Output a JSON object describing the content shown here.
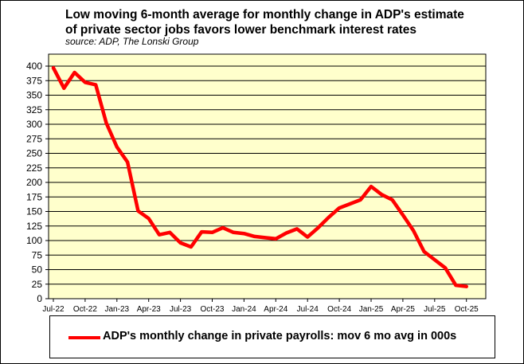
{
  "chart_data": {
    "type": "line",
    "title_line1": "Low moving 6-month average for monthly change in ADP's estimate",
    "title_line2": "of private sector jobs favors lower benchmark interest rates",
    "source": "source: ADP, The Lonski Group",
    "ylim": [
      0,
      400
    ],
    "yticks": [
      0,
      25,
      50,
      75,
      100,
      125,
      150,
      175,
      200,
      225,
      250,
      275,
      300,
      325,
      350,
      375,
      400
    ],
    "xtick_labels": [
      "Jul-22",
      "Oct-22",
      "Jan-23",
      "Apr-23",
      "Jul-23",
      "Oct-23",
      "Jan-24",
      "Apr-24",
      "Jul-24",
      "Oct-24",
      "Jan-25",
      "Apr-25",
      "Jul-25",
      "Oct-25"
    ],
    "grid": true,
    "series": [
      {
        "name": "ADP's monthly change in private payrolls: mov 6 mo avg in 000s",
        "color": "#ff0000",
        "x": [
          "Jul-22",
          "Aug-22",
          "Sep-22",
          "Oct-22",
          "Nov-22",
          "Dec-22",
          "Jan-23",
          "Feb-23",
          "Mar-23",
          "Apr-23",
          "May-23",
          "Jun-23",
          "Jul-23",
          "Aug-23",
          "Sep-23",
          "Oct-23",
          "Nov-23",
          "Dec-23",
          "Jan-24",
          "Feb-24",
          "Mar-24",
          "Apr-24",
          "May-24",
          "Jun-24",
          "Jul-24",
          "Aug-24",
          "Sep-24",
          "Oct-24",
          "Nov-24",
          "Dec-24",
          "Jan-25",
          "Feb-25",
          "Mar-25",
          "Apr-25",
          "May-25",
          "Jun-25",
          "Jul-25",
          "Aug-25",
          "Sep-25",
          "Oct-25"
        ],
        "values": [
          397,
          362,
          389,
          372,
          368,
          302,
          261,
          235,
          151,
          138,
          110,
          114,
          96,
          89,
          115,
          114,
          122,
          114,
          112,
          107,
          105,
          103,
          113,
          120,
          106,
          122,
          140,
          156,
          163,
          170,
          193,
          179,
          170,
          144,
          117,
          81,
          67,
          53,
          23,
          21
        ]
      }
    ]
  },
  "legend": {
    "label": "ADP's monthly change in private payrolls: mov 6 mo avg in 000s"
  }
}
